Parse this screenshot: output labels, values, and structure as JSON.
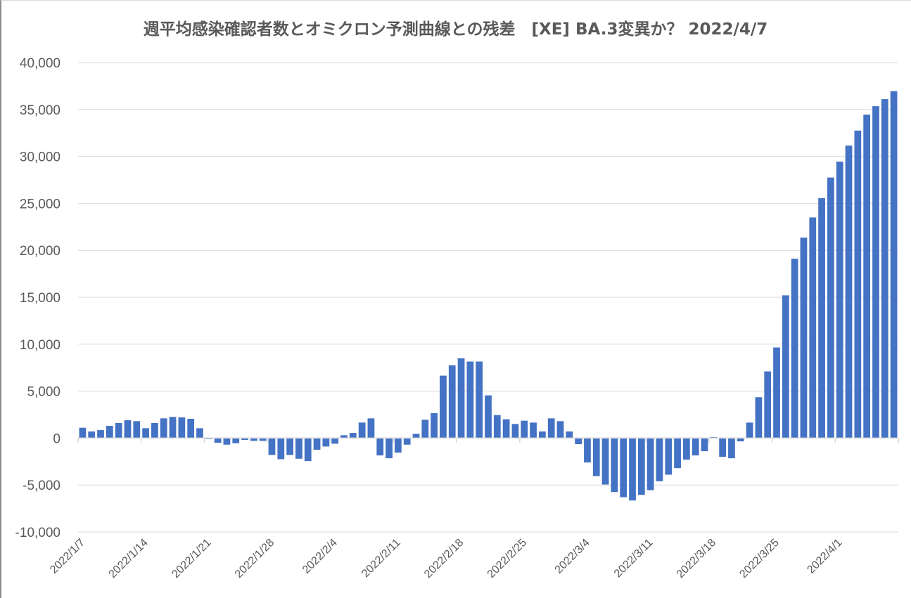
{
  "chart_data": {
    "type": "bar",
    "title": "週平均感染確認者数とオミクロン予測曲線との残差　[XE] BA.3変異か？ 2022/4/7",
    "xlabel": "",
    "ylabel": "",
    "ylim": [
      -10000,
      40000
    ],
    "ytick_step": 5000,
    "ytick_labels": [
      "40,000",
      "35,000",
      "30,000",
      "25,000",
      "20,000",
      "15,000",
      "10,000",
      "5,000",
      "0",
      "-5,000",
      "-10,000"
    ],
    "xtick_labels": [
      "2022/1/7",
      "2022/1/14",
      "2022/1/21",
      "2022/1/28",
      "2022/2/4",
      "2022/2/11",
      "2022/2/18",
      "2022/2/25",
      "2022/3/4",
      "2022/3/11",
      "2022/3/18",
      "2022/3/25",
      "2022/4/1"
    ],
    "xtick_every": 7,
    "grid": true,
    "legend": "none",
    "bar_color": "#4472C4",
    "start_date": "2022/1/7",
    "end_date": "2022/4/7",
    "values": [
      1100,
      700,
      850,
      1300,
      1600,
      1900,
      1800,
      1050,
      1600,
      2100,
      2250,
      2200,
      2050,
      1050,
      -100,
      -500,
      -700,
      -550,
      -200,
      -300,
      -300,
      -1800,
      -2250,
      -1800,
      -2200,
      -2450,
      -1250,
      -900,
      -600,
      300,
      550,
      1650,
      2100,
      -1850,
      -2150,
      -1550,
      -700,
      450,
      1950,
      2650,
      6650,
      7750,
      8500,
      8150,
      8150,
      4550,
      2450,
      2000,
      1500,
      1850,
      1650,
      700,
      2100,
      1800,
      700,
      -650,
      -2600,
      -4050,
      -4950,
      -5750,
      -6300,
      -6650,
      -6050,
      -5550,
      -4600,
      -3900,
      -3200,
      -2300,
      -1850,
      -1400,
      100,
      -2000,
      -2150,
      -350,
      1650,
      4350,
      7100,
      9650,
      15200,
      19100,
      21350,
      23500,
      25550,
      27750,
      29450,
      31150,
      32750,
      34450,
      35350,
      36100,
      36950
    ]
  }
}
